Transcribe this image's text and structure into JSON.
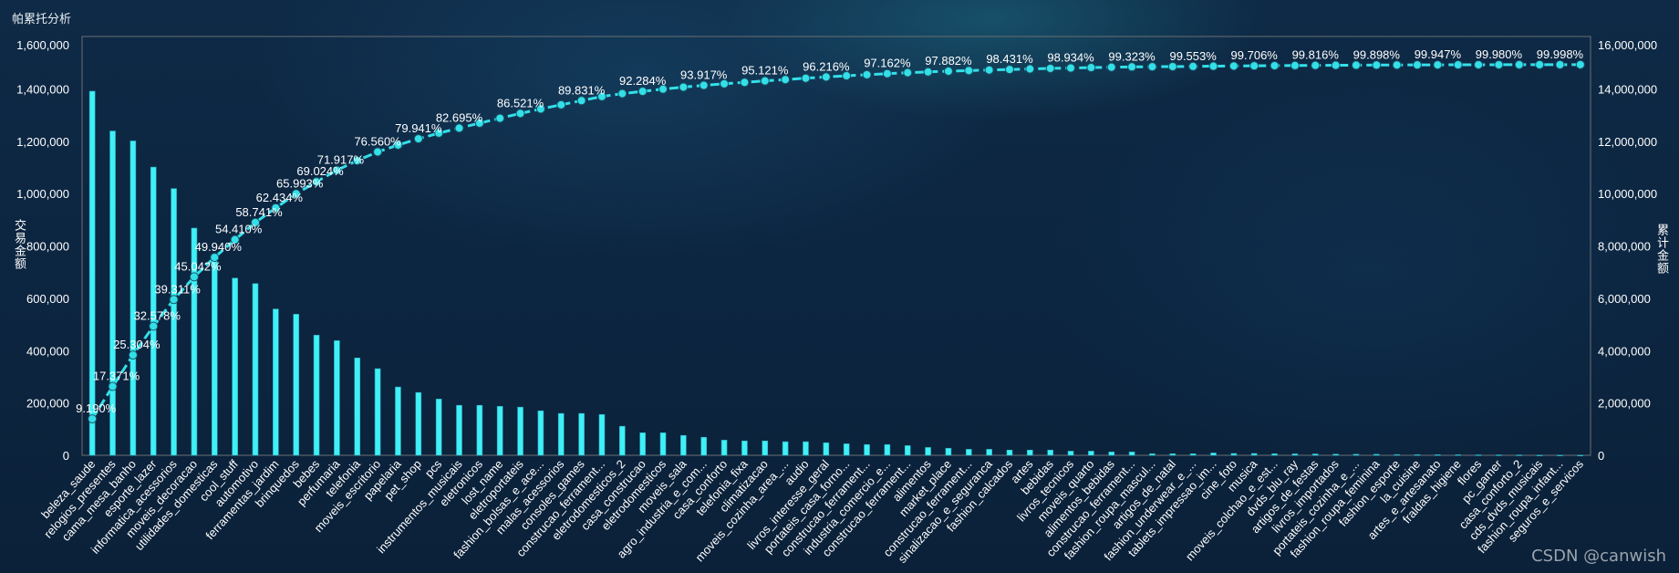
{
  "title": "帕累托分析",
  "watermark": "CSDN @canwish",
  "chart_data": {
    "type": "bar",
    "title": "帕累托分析",
    "ylabel": "交易金额",
    "y2label": "累计金额",
    "ylim": [
      0,
      1600000
    ],
    "y2lim": [
      0,
      16000000
    ],
    "left_ticks": [
      "0",
      "200,000",
      "400,000",
      "600,000",
      "800,000",
      "1,000,000",
      "1,200,000",
      "1,400,000",
      "1,600,000"
    ],
    "right_ticks": [
      "0",
      "2,000,000",
      "4,000,000",
      "6,000,000",
      "8,000,000",
      "10,000,000",
      "12,000,000",
      "14,000,000",
      "16,000,000"
    ],
    "grid": false,
    "colors": {
      "bar": "#3ff0f7",
      "line": "#33dfe9",
      "axis": "#6b6f73"
    },
    "categories": [
      "beleza_saude",
      "relogios_presentes",
      "cama_mesa_banho",
      "esporte_lazer",
      "informatica_acessorios",
      "moveis_decoracao",
      "utilidades_domesticas",
      "cool_stuff",
      "automotivo",
      "ferramentas_jardim",
      "brinquedos",
      "bebes",
      "perfumaria",
      "telefonia",
      "moveis_escritorio",
      "papelaria",
      "pet_shop",
      "pcs",
      "instrumentos_musicais",
      "eletronicos",
      "lost_name",
      "eletroportateis",
      "fashion_bolsas_e_ace...",
      "malas_acessorios",
      "consoles_games",
      "construcao_ferrament...",
      "eletrodomesticos_2",
      "casa_construcao",
      "eletrodomesticos",
      "moveis_sala",
      "agro_industria_e_com...",
      "casa_conforto",
      "telefonia_fixa",
      "climatizacao",
      "moveis_cozinha_area_...",
      "audio",
      "livros_interesse_geral",
      "portateis_casa_forno...",
      "construcao_ferrament...",
      "industria_comercio_e...",
      "construcao_ferrament...",
      "alimentos",
      "market_place",
      "construcao_ferrament...",
      "sinalizacao_e_seguranca",
      "fashion_calcados",
      "artes",
      "bebidas",
      "livros_tecnicos",
      "moveis_quarto",
      "alimentos_bebidas",
      "construcao_ferrament...",
      "fashion_roupa_mascul...",
      "artigos_de_natal",
      "fashion_underwear_e_...",
      "tablets_impressao_im...",
      "cine_foto",
      "musica",
      "moveis_colchao_e_est...",
      "dvds_blu_ray",
      "artigos_de_festas",
      "livros_importados",
      "portateis_cozinha_e_...",
      "fashion_roupa_feminina",
      "fashion_esporte",
      "la_cuisine",
      "artes_e_artesanato",
      "fraldas_higiene",
      "flores",
      "pc_gamer",
      "casa_conforto_2",
      "cds_dvds_musicais",
      "fashion_roupa_infant...",
      "seguros_e_servicos"
    ],
    "series": [
      {
        "name": "交易金额",
        "type": "bar",
        "axis": "left",
        "values": [
          1391000,
          1239000,
          1201000,
          1101000,
          1019000,
          868000,
          742000,
          677000,
          656000,
          559000,
          539000,
          459000,
          438000,
          372000,
          331000,
          261000,
          240000,
          215000,
          191000,
          191000,
          187000,
          184000,
          170000,
          160000,
          160000,
          156000,
          111000,
          86000,
          86000,
          76000,
          69000,
          58000,
          55000,
          55000,
          52000,
          52000,
          48000,
          44000,
          41000,
          41000,
          37000,
          30000,
          27000,
          23000,
          23000,
          20000,
          20000,
          20000,
          16000,
          16000,
          13000,
          13000,
          6000,
          6000,
          6000,
          9000,
          7000,
          7000,
          6000,
          5500,
          5200,
          4500,
          4000,
          3900,
          2800,
          2400,
          2200,
          1900,
          1600,
          1500,
          1200,
          800,
          700,
          300
        ]
      },
      {
        "name": "累计金额",
        "type": "line",
        "axis": "right",
        "cumulative_of": "交易金额"
      }
    ],
    "cumulative_labels": [
      {
        "index": 0,
        "text": "9.190%"
      },
      {
        "index": 1,
        "text": "17.371%"
      },
      {
        "index": 2,
        "text": "25.304%"
      },
      {
        "index": 3,
        "text": "32.578%"
      },
      {
        "index": 4,
        "text": "39.311%"
      },
      {
        "index": 5,
        "text": "45.042%"
      },
      {
        "index": 6,
        "text": "49.940%"
      },
      {
        "index": 7,
        "text": "54.410%"
      },
      {
        "index": 8,
        "text": "58.741%"
      },
      {
        "index": 9,
        "text": "62.434%"
      },
      {
        "index": 10,
        "text": "65.993%"
      },
      {
        "index": 11,
        "text": "69.024%"
      },
      {
        "index": 12,
        "text": "71.917%"
      },
      {
        "index": 14,
        "text": "76.560%"
      },
      {
        "index": 16,
        "text": "79.941%"
      },
      {
        "index": 18,
        "text": "82.695%"
      },
      {
        "index": 21,
        "text": "86.521%"
      },
      {
        "index": 24,
        "text": "89.831%"
      },
      {
        "index": 27,
        "text": "92.284%"
      },
      {
        "index": 30,
        "text": "93.917%"
      },
      {
        "index": 33,
        "text": "95.121%"
      },
      {
        "index": 36,
        "text": "96.216%"
      },
      {
        "index": 39,
        "text": "97.162%"
      },
      {
        "index": 42,
        "text": "97.882%"
      },
      {
        "index": 45,
        "text": "98.431%"
      },
      {
        "index": 48,
        "text": "98.934%"
      },
      {
        "index": 51,
        "text": "99.323%"
      },
      {
        "index": 54,
        "text": "99.553%"
      },
      {
        "index": 57,
        "text": "99.706%"
      },
      {
        "index": 60,
        "text": "99.816%"
      },
      {
        "index": 63,
        "text": "99.898%"
      },
      {
        "index": 66,
        "text": "99.947%"
      },
      {
        "index": 69,
        "text": "99.980%"
      },
      {
        "index": 72,
        "text": "99.998%"
      }
    ]
  }
}
